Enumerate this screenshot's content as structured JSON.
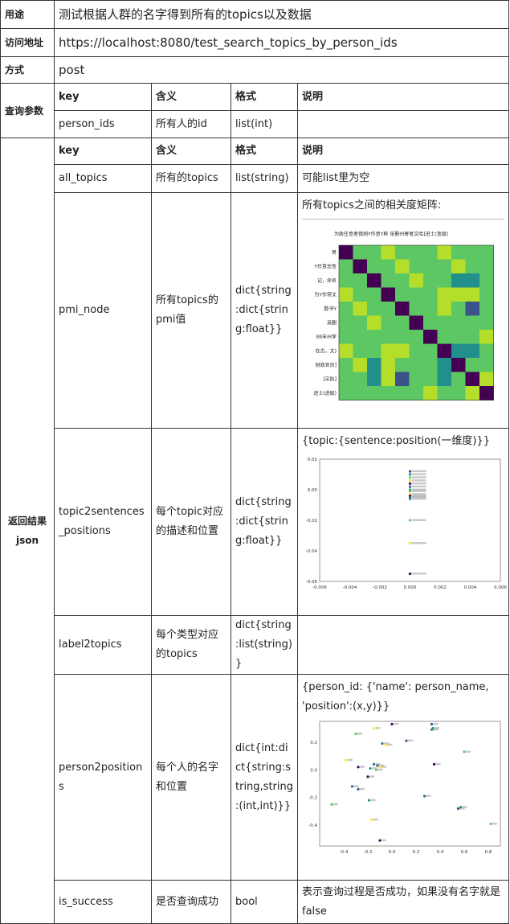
{
  "rows": {
    "usage": {
      "label": "用途",
      "value": "测试根据人群的名字得到所有的topics以及数据"
    },
    "url": {
      "label": "访问地址",
      "value": "https://localhost:8080/test_search_topics_by_person_ids"
    },
    "method": {
      "label": "方式",
      "value": "post"
    }
  },
  "query": {
    "label": "查询参数",
    "headers": [
      "key",
      "含义",
      "格式",
      "说明"
    ],
    "rows": [
      {
        "key": "person_ids",
        "meaning": "所有人的id",
        "format": "list(int)",
        "note": ""
      }
    ]
  },
  "result": {
    "label_line1": "返回结果",
    "label_line2": "json",
    "headers": [
      "key",
      "含义",
      "格式",
      "说明"
    ],
    "rows": [
      {
        "key": "all_topics",
        "meaning": "所有的topics",
        "format": "list(string)",
        "note": "可能list里为空"
      },
      {
        "key": "pmi_node",
        "meaning": "所有topics的pmi值",
        "format": "dict{string:dict{string:float}}",
        "note": "所有topics之间的相关度矩阵:"
      },
      {
        "key": "topic2sentences_positions",
        "meaning": "每个topic对应的描述和位置",
        "format": "dict{string:dict{string:float}}",
        "note": "{topic:{sentence:position(一维度)}}"
      },
      {
        "key": "label2topics",
        "meaning": "每个类型对应的topics",
        "format": "dict{string:list(string)}",
        "note": ""
      },
      {
        "key": "person2positions",
        "meaning": "每个人的名字和位置",
        "format": "dict{int:dict{string:string,string:(int,int)}}",
        "note": "{person_id: {'name': person_name, 'position':(x,y)}}"
      },
      {
        "key": "is_success",
        "meaning": "是否查询成功",
        "format": "bool",
        "note": "表示查询过程是否成功，如果没有名字就是false"
      }
    ]
  },
  "heatmap": {
    "row_labels": [
      "男",
      "Y作意志性",
      "记，命名",
      "为Y作带文",
      "数书Y",
      "采删",
      "l州丰州李",
      "在古，文)",
      "财政官员]",
      "[宗执]",
      "进士(进级)"
    ],
    "top_label": "为政往意者错例Y作意Y粹 采删州寄者文哈]进士(宽级)",
    "colors": [
      "#440154",
      "#3b528b",
      "#21908d",
      "#5dc863",
      "#b5de2b",
      "#fde725"
    ]
  },
  "chart_data": [
    {
      "type": "heatmap",
      "title": "",
      "categories": [
        "男",
        "Y作意志性",
        "记，命名",
        "为Y作带文",
        "数书Y",
        "采删",
        "l州丰州李",
        "在古，文)",
        "财政官员]",
        "[宗执]",
        "进士(进级)"
      ],
      "values": [
        [
          0,
          3,
          3,
          4,
          3,
          3,
          3,
          4,
          3,
          3,
          3
        ],
        [
          3,
          0,
          3,
          3,
          4,
          3,
          3,
          3,
          4,
          3,
          3
        ],
        [
          3,
          3,
          0,
          3,
          3,
          4,
          3,
          3,
          2,
          2,
          3
        ],
        [
          4,
          3,
          3,
          0,
          3,
          3,
          3,
          4,
          4,
          4,
          3
        ],
        [
          3,
          4,
          3,
          3,
          0,
          3,
          3,
          4,
          3,
          1,
          3
        ],
        [
          3,
          3,
          4,
          3,
          3,
          0,
          3,
          3,
          3,
          3,
          3
        ],
        [
          3,
          3,
          3,
          3,
          3,
          3,
          0,
          3,
          3,
          3,
          4
        ],
        [
          4,
          3,
          3,
          4,
          4,
          3,
          3,
          0,
          2,
          2,
          3
        ],
        [
          3,
          4,
          2,
          4,
          3,
          3,
          3,
          2,
          0,
          3,
          3
        ],
        [
          3,
          3,
          2,
          4,
          1,
          3,
          3,
          2,
          3,
          0,
          4
        ],
        [
          3,
          3,
          3,
          3,
          3,
          3,
          4,
          3,
          3,
          4,
          0
        ]
      ]
    },
    {
      "type": "scatter",
      "xlim": [
        -0.006,
        0.006
      ],
      "ylim": [
        -0.06,
        0.02
      ],
      "xticks": [
        "-0.006",
        "-0.004",
        "-0.002",
        "0.000",
        "0.002",
        "0.004",
        "0.006"
      ],
      "yticks": [
        "0.02",
        "0.00",
        "-0.02",
        "-0.04",
        "-0.06"
      ],
      "x": [
        0.0,
        0.0,
        0.0,
        0.0,
        0.0,
        0.0,
        0.0,
        0.0,
        0.0,
        0.0,
        0.0,
        0.0,
        0.0,
        0.0,
        0.0
      ],
      "y": [
        0.012,
        0.01,
        0.008,
        0.006,
        0.004,
        0.002,
        0.0,
        -0.001,
        -0.003,
        -0.004,
        -0.005,
        -0.006,
        -0.02,
        -0.035,
        -0.055
      ]
    },
    {
      "type": "scatter",
      "xlim": [
        -0.6,
        0.9
      ],
      "ylim": [
        -0.55,
        0.35
      ],
      "xticks": [
        "-0.4",
        "-0.2",
        "0.0",
        "0.2",
        "0.4",
        "0.6",
        "0.8"
      ],
      "yticks": [
        "0.2",
        "0.0",
        "-0.2",
        "-0.4"
      ],
      "x": [
        0.33,
        0.34,
        -0.3,
        -0.15,
        0.0,
        -0.08,
        0.12,
        0.33,
        0.6,
        -0.38,
        -0.28,
        -0.15,
        -0.12,
        -0.18,
        -0.13,
        -0.1,
        -0.2,
        -0.33,
        -0.28,
        -0.19,
        -0.5,
        -0.17,
        -0.1,
        0.27,
        0.55,
        0.57,
        0.82,
        -0.05,
        0.35
      ],
      "y": [
        0.33,
        0.3,
        0.26,
        0.3,
        0.33,
        0.19,
        0.21,
        0.29,
        0.13,
        0.07,
        0.02,
        0.04,
        0.03,
        0.01,
        0.0,
        0.02,
        -0.05,
        -0.12,
        -0.14,
        -0.22,
        -0.25,
        -0.36,
        -0.51,
        -0.19,
        -0.28,
        -0.27,
        -0.39,
        0.18,
        0.04
      ]
    }
  ]
}
